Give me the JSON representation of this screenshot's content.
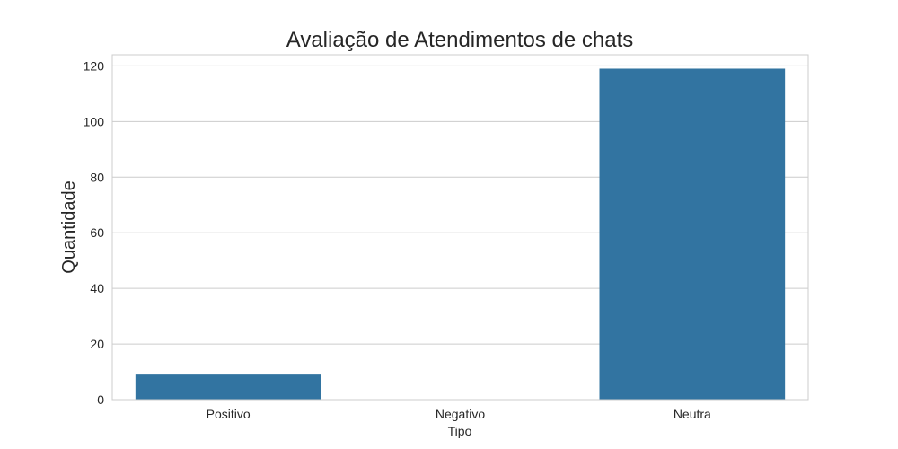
{
  "chart_data": {
    "type": "bar",
    "title": "Avaliação de Atendimentos de chats",
    "xlabel": "Tipo",
    "ylabel": "Quantidade",
    "categories": [
      "Positivo",
      "Negativo",
      "Neutra"
    ],
    "values": [
      9,
      0,
      119
    ],
    "ylim": [
      0,
      124
    ],
    "yticks": [
      0,
      20,
      40,
      60,
      80,
      100,
      120
    ],
    "grid": true,
    "bar_color": "#3274a1",
    "grid_color": "#cccccc",
    "frame_color": "#cccccc"
  }
}
